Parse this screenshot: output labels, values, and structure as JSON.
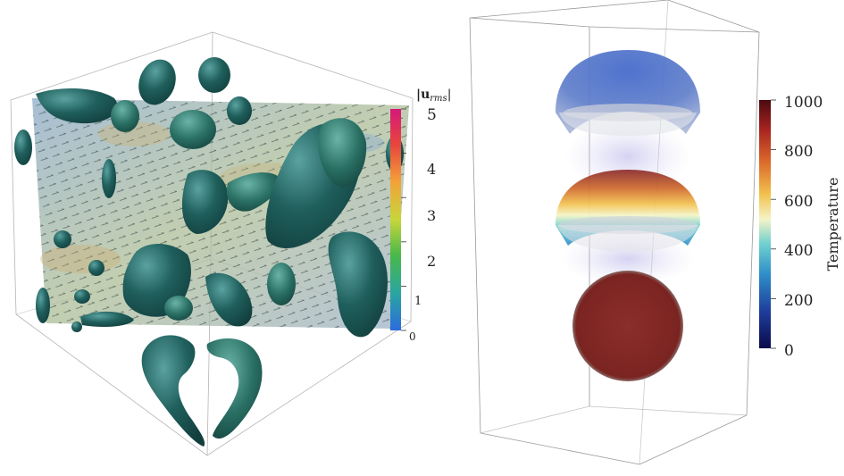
{
  "left_figure": {
    "colorbar": {
      "title_main": "|u",
      "title_sub": "rms",
      "title_end": "|",
      "ticks": [
        "0",
        "1",
        "2",
        "3",
        "4",
        "5"
      ],
      "range": [
        0,
        5
      ],
      "colors": [
        "#2b6cdc",
        "#2aa6a0",
        "#49b84a",
        "#c7d63a",
        "#f2a23a",
        "#e8453c",
        "#d4197a"
      ]
    },
    "surface_color": "#1f5f5c",
    "plane_color": "#8fa8c4"
  },
  "right_figure": {
    "colorbar": {
      "label": "Temperature",
      "ticks": [
        "0",
        "200",
        "400",
        "600",
        "800",
        "1000"
      ],
      "range": [
        0,
        1000
      ],
      "colors": [
        "#0b0a4a",
        "#1e3e9c",
        "#2f8fc9",
        "#6fd0cf",
        "#f4f4c6",
        "#f2c14e",
        "#dc6a2a",
        "#a82420",
        "#4a0a10"
      ]
    }
  }
}
